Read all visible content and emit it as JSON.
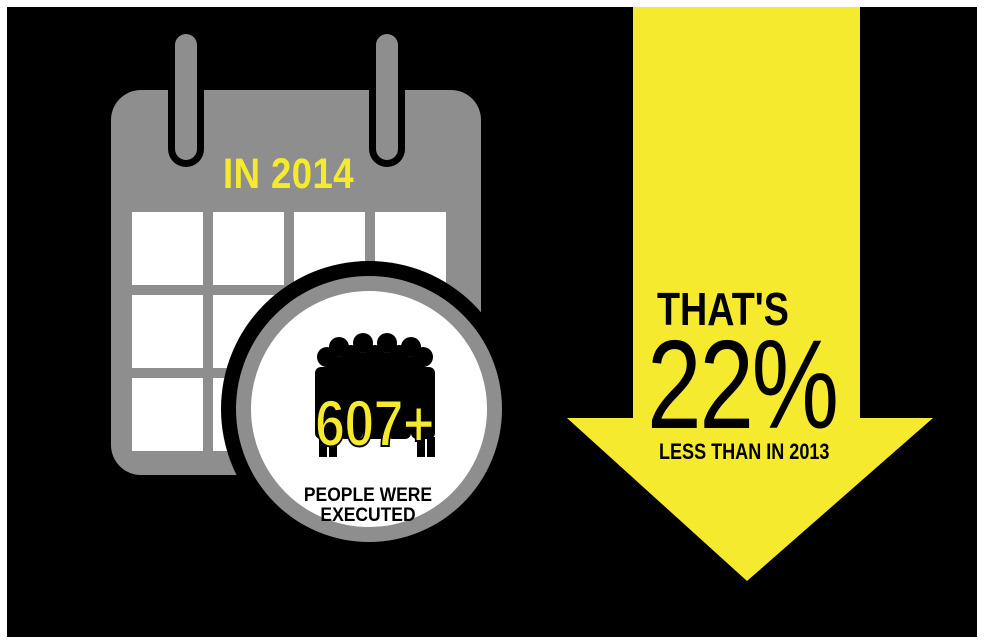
{
  "calendar": {
    "year_label": "IN 2014",
    "icon": "calendar-icon"
  },
  "executions": {
    "count": "607+",
    "label_line1": "PEOPLE WERE",
    "label_line2": "EXECUTED",
    "icon": "people-group-icon"
  },
  "change": {
    "prefix": "THAT'S",
    "percent": "22%",
    "suffix": "LESS THAN IN 2013",
    "icon": "down-arrow-icon"
  },
  "colors": {
    "background": "#000000",
    "accent_yellow": "#f6ea2f",
    "calendar_gray": "#8e8e8e",
    "grid_white": "#ffffff"
  }
}
